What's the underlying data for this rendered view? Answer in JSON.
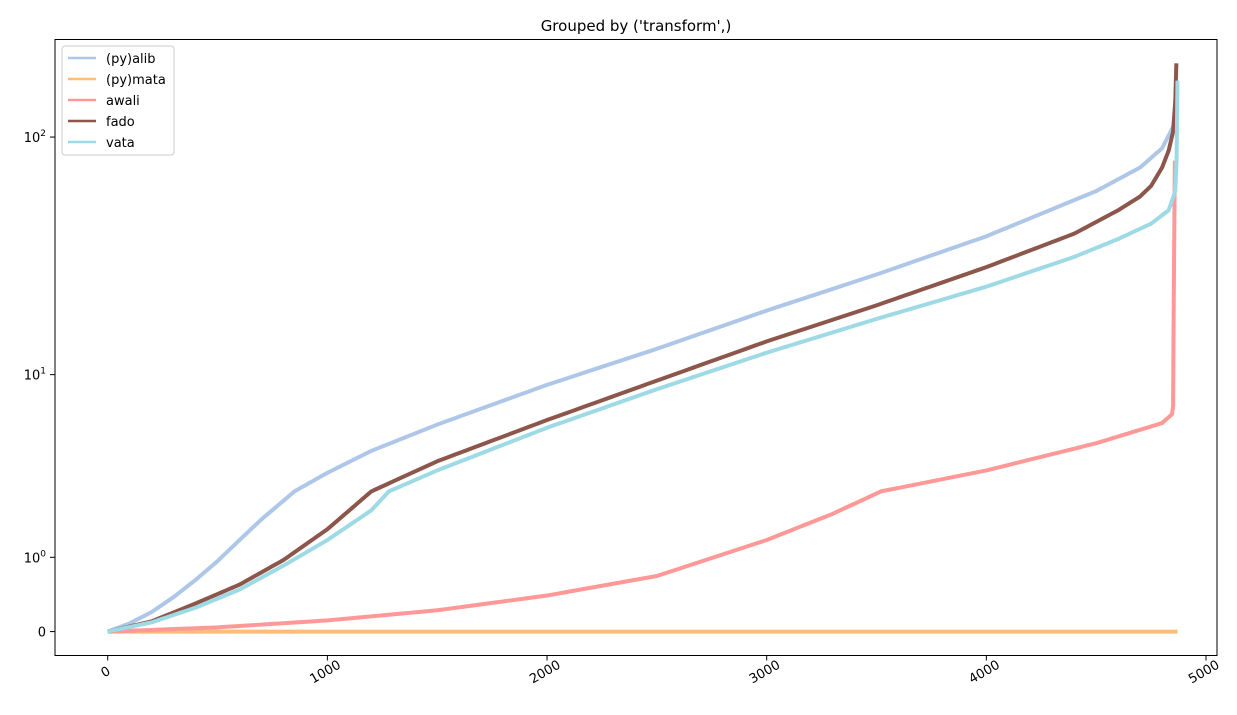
{
  "chart_data": {
    "type": "line",
    "title": "Grouped by ('transform',)",
    "xlabel": "",
    "ylabel": "",
    "xlim": [
      -240,
      5050
    ],
    "xticks": [
      0,
      1000,
      2000,
      3000,
      4000,
      5000
    ],
    "xtick_labels": [
      "0",
      "1000",
      "2000",
      "3000",
      "4000",
      "5000"
    ],
    "yscale": "symlog",
    "ylim": [
      -0.25,
      250
    ],
    "yticks": [
      0,
      1,
      10,
      100
    ],
    "ytick_labels": [
      {
        "base": "0",
        "exp": ""
      },
      {
        "base": "10",
        "exp": "0"
      },
      {
        "base": "10",
        "exp": "1"
      },
      {
        "base": "10",
        "exp": "2"
      }
    ],
    "grid": false,
    "legend_position": "top-left",
    "series": [
      {
        "name": "(py)alib",
        "color": "#aec7e8",
        "points": [
          [
            0,
            0
          ],
          [
            100,
            0.08
          ],
          [
            200,
            0.2
          ],
          [
            300,
            0.38
          ],
          [
            400,
            0.62
          ],
          [
            500,
            0.93
          ],
          [
            600,
            1.35
          ],
          [
            700,
            1.85
          ],
          [
            850,
            2.7
          ],
          [
            1000,
            3.4
          ],
          [
            1200,
            4.4
          ],
          [
            1500,
            5.9
          ],
          [
            2000,
            9
          ],
          [
            2500,
            13
          ],
          [
            3000,
            19
          ],
          [
            3500,
            27
          ],
          [
            4000,
            39
          ],
          [
            4500,
            60
          ],
          [
            4700,
            75
          ],
          [
            4800,
            90
          ],
          [
            4850,
            110
          ],
          [
            4870,
            150
          ]
        ]
      },
      {
        "name": "(py)mata",
        "color": "#ffbb78",
        "points": [
          [
            0,
            0
          ],
          [
            4870,
            0
          ]
        ]
      },
      {
        "name": "awali",
        "color": "#ff9896",
        "points": [
          [
            0,
            0
          ],
          [
            500,
            0.04
          ],
          [
            1000,
            0.11
          ],
          [
            1500,
            0.22
          ],
          [
            2000,
            0.4
          ],
          [
            2500,
            0.68
          ],
          [
            3000,
            1.35
          ],
          [
            3300,
            2.0
          ],
          [
            3520,
            2.7
          ],
          [
            4000,
            3.5
          ],
          [
            4500,
            4.8
          ],
          [
            4800,
            6.0
          ],
          [
            4845,
            6.6
          ],
          [
            4850,
            7.2
          ],
          [
            4853,
            20
          ],
          [
            4858,
            80
          ]
        ]
      },
      {
        "name": "fado",
        "color": "#8c564b",
        "points": [
          [
            0,
            0
          ],
          [
            200,
            0.1
          ],
          [
            400,
            0.3
          ],
          [
            600,
            0.55
          ],
          [
            800,
            0.95
          ],
          [
            1000,
            1.6
          ],
          [
            1100,
            2.1
          ],
          [
            1200,
            2.7
          ],
          [
            1500,
            3.9
          ],
          [
            2000,
            6.2
          ],
          [
            2500,
            9.4
          ],
          [
            3000,
            14
          ],
          [
            3500,
            20
          ],
          [
            4000,
            29
          ],
          [
            4400,
            40
          ],
          [
            4600,
            50
          ],
          [
            4700,
            57
          ],
          [
            4750,
            63
          ],
          [
            4800,
            75
          ],
          [
            4830,
            88
          ],
          [
            4850,
            105
          ],
          [
            4860,
            140
          ],
          [
            4865,
            200
          ]
        ]
      },
      {
        "name": "vata",
        "color": "#9edae5",
        "points": [
          [
            0,
            0
          ],
          [
            200,
            0.09
          ],
          [
            400,
            0.25
          ],
          [
            600,
            0.48
          ],
          [
            800,
            0.85
          ],
          [
            1000,
            1.35
          ],
          [
            1200,
            2.1
          ],
          [
            1280,
            2.7
          ],
          [
            1500,
            3.5
          ],
          [
            2000,
            5.7
          ],
          [
            2500,
            8.6
          ],
          [
            3000,
            12.5
          ],
          [
            3500,
            17.5
          ],
          [
            4000,
            24
          ],
          [
            4400,
            32
          ],
          [
            4600,
            38
          ],
          [
            4750,
            44
          ],
          [
            4830,
            50
          ],
          [
            4860,
            60
          ],
          [
            4866,
            80
          ],
          [
            4870,
            170
          ]
        ]
      }
    ]
  }
}
